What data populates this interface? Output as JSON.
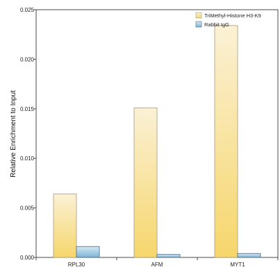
{
  "chart_data": {
    "type": "bar",
    "categories": [
      "RPL30",
      "AFM",
      "MYT1"
    ],
    "series": [
      {
        "name": "TriMethyl-Histone H3-K9",
        "values": [
          0.0064,
          0.0151,
          0.0234
        ],
        "color_top": "#fbf1d5",
        "color_bottom": "#f6d66c",
        "stroke": "#a89a7a"
      },
      {
        "name": "Rabbit IgG",
        "values": [
          0.0011,
          0.0003,
          0.0004
        ],
        "color_top": "#d6e9f6",
        "color_bottom": "#7fb3d3",
        "stroke": "#4a6a82"
      }
    ],
    "ylabel": "Relative Enrichment to Input",
    "xlabel": "",
    "ylim": [
      0,
      0.025
    ],
    "yticks": [
      "0.000",
      "0.005",
      "0.010",
      "0.015",
      "0.020",
      "0.025"
    ],
    "grid": false,
    "legend_position": "top-right"
  }
}
